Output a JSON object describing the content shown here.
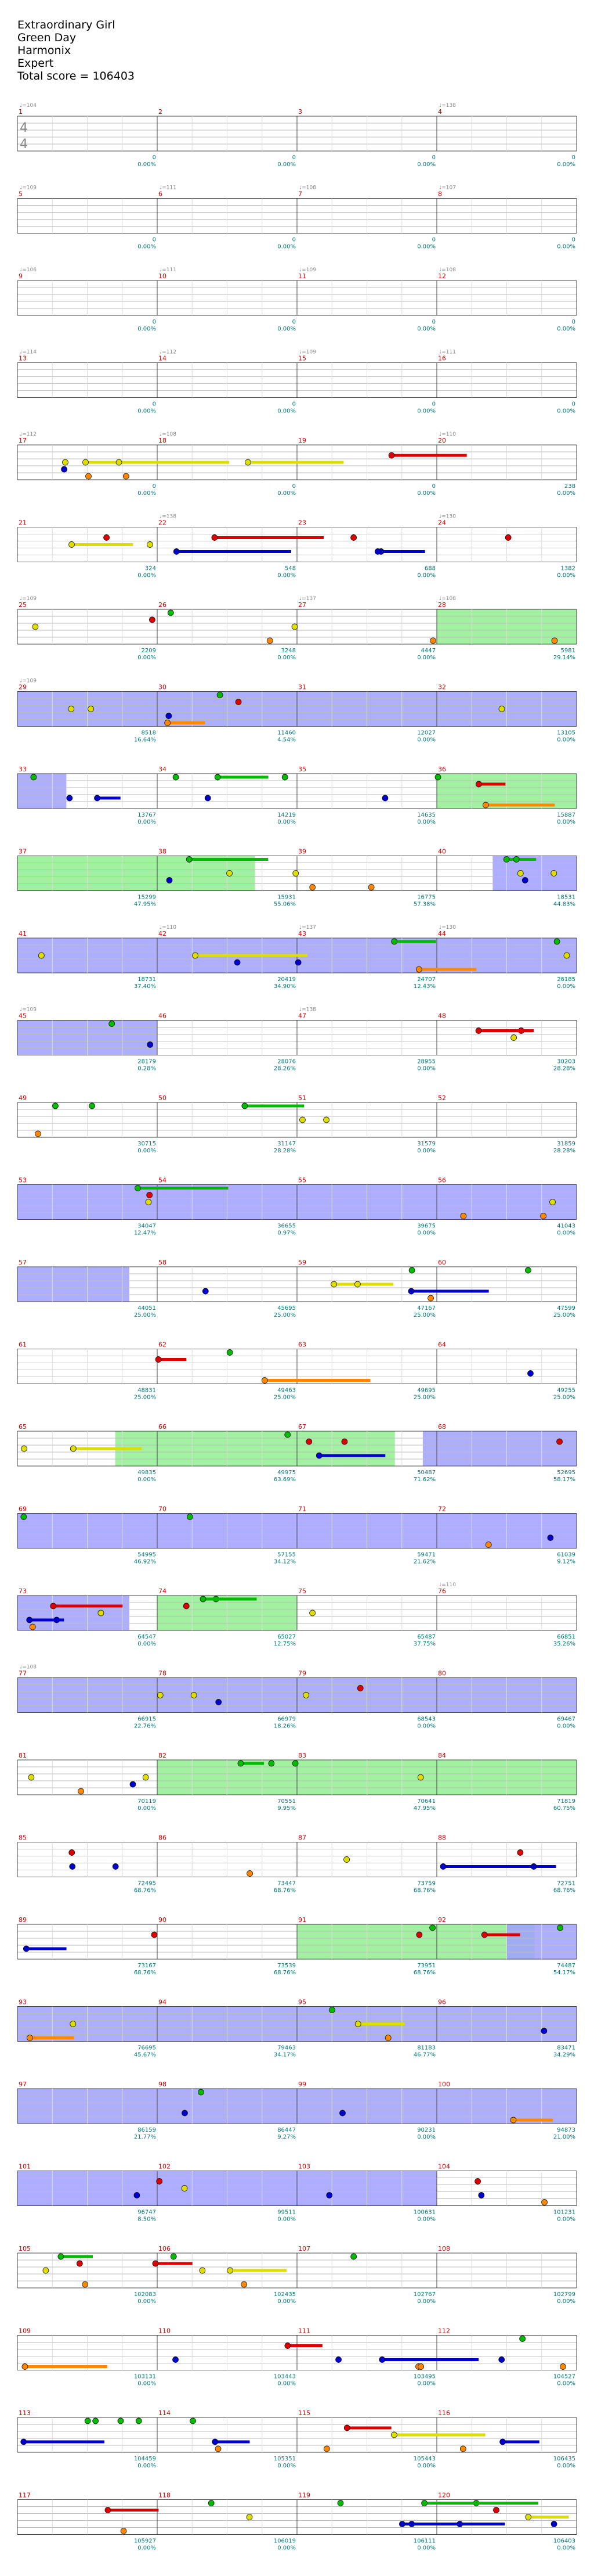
{
  "song": {
    "title": "Extraordinary Girl",
    "artist": "Green Day",
    "charter": "Harmonix",
    "difficulty": "Expert",
    "total_score_label": "Total score = ",
    "total_score": "106403"
  },
  "time_signature": [
    "4",
    "4"
  ],
  "colors": {
    "green": "#00bb00",
    "red": "#dd0000",
    "yellow": "#dddd00",
    "blue": "#0000cc",
    "orange": "#ff8800",
    "starpower_fill": "#90ee90",
    "overdrive_fill": "#a0a0ff",
    "text_score": "#007777",
    "text_tempo": "#888888",
    "text_measure": "#cc0000"
  },
  "rows": [
    {
      "measures": [
        1,
        2,
        3,
        4
      ],
      "scores": [
        "0",
        "0",
        "0",
        "0"
      ],
      "percents": [
        "0.00%",
        "0.00%",
        "0.00%",
        "0.00%"
      ],
      "tempos": [
        "104",
        "",
        "",
        "138"
      ]
    },
    {
      "measures": [
        5,
        6,
        7,
        8
      ],
      "scores": [
        "0",
        "0",
        "0",
        "0"
      ],
      "percents": [
        "0.00%",
        "0.00%",
        "0.00%",
        "0.00%"
      ],
      "tempos": [
        "109",
        "111",
        "108",
        "107"
      ]
    },
    {
      "measures": [
        9,
        10,
        11,
        12
      ],
      "scores": [
        "0",
        "0",
        "0",
        "0"
      ],
      "percents": [
        "0.00%",
        "0.00%",
        "0.00%",
        "0.00%"
      ],
      "tempos": [
        "106",
        "111",
        "109",
        "108"
      ]
    },
    {
      "measures": [
        13,
        14,
        15,
        16
      ],
      "scores": [
        "0",
        "0",
        "0",
        "0"
      ],
      "percents": [
        "0.00%",
        "0.00%",
        "0.00%",
        "0.00%"
      ],
      "tempos": [
        "114",
        "112",
        "109",
        "111"
      ]
    },
    {
      "measures": [
        17,
        18,
        19,
        20
      ],
      "scores": [
        "0",
        "0",
        "0",
        "238"
      ],
      "percents": [
        "0.00%",
        "0.00%",
        "0.00%",
        "0.00%"
      ],
      "tempos": [
        "112",
        "108",
        "",
        "110"
      ]
    },
    {
      "measures": [
        21,
        22,
        23,
        24
      ],
      "scores": [
        "324",
        "548",
        "688",
        "1382"
      ],
      "percents": [
        "0.00%",
        "0.00%",
        "0.00%",
        "0.00%"
      ],
      "tempos": [
        "",
        "138",
        "",
        "130"
      ]
    },
    {
      "measures": [
        25,
        26,
        27,
        28
      ],
      "scores": [
        "2209",
        "3248",
        "4447",
        "5981"
      ],
      "percents": [
        "0.00%",
        "0.00%",
        "0.00%",
        "29.14%"
      ],
      "tempos": [
        "109",
        "",
        "137",
        "108"
      ]
    },
    {
      "measures": [
        29,
        30,
        31,
        32
      ],
      "scores": [
        "8518",
        "11460",
        "12027",
        "13105"
      ],
      "percents": [
        "16.64%",
        "4.54%",
        "0.00%",
        "0.00%"
      ],
      "tempos": [
        "109",
        "",
        "",
        ""
      ]
    },
    {
      "measures": [
        33,
        34,
        35,
        36
      ],
      "scores": [
        "13767",
        "14219",
        "14635",
        "15887"
      ],
      "percents": [
        "0.00%",
        "0.00%",
        "0.00%",
        "0.00%"
      ],
      "tempos": [
        "",
        "",
        "",
        ""
      ]
    },
    {
      "measures": [
        37,
        38,
        39,
        40
      ],
      "scores": [
        "15299",
        "15931",
        "16775",
        "18531"
      ],
      "percents": [
        "47.95%",
        "55.06%",
        "57.38%",
        "44.83%"
      ],
      "tempos": [
        "",
        "",
        "",
        ""
      ]
    },
    {
      "measures": [
        41,
        42,
        43,
        44
      ],
      "scores": [
        "18731",
        "20419",
        "24707",
        "26185"
      ],
      "percents": [
        "37.40%",
        "34.90%",
        "12.43%",
        "0.00%"
      ],
      "tempos": [
        "",
        "110",
        "137",
        "130"
      ]
    },
    {
      "measures": [
        45,
        46,
        47,
        48
      ],
      "scores": [
        "28179",
        "28076",
        "28955",
        "30203"
      ],
      "percents": [
        "0.28%",
        "28.26%",
        "0.00%",
        "28.28%"
      ],
      "tempos": [
        "109",
        "",
        "138",
        ""
      ]
    },
    {
      "measures": [
        49,
        50,
        51,
        52
      ],
      "scores": [
        "30715",
        "31147",
        "31579",
        "31859"
      ],
      "percents": [
        "0.00%",
        "28.28%",
        "0.00%",
        "28.28%"
      ],
      "tempos": [
        "",
        "",
        "",
        ""
      ]
    },
    {
      "measures": [
        53,
        54,
        55,
        56
      ],
      "scores": [
        "34047",
        "36655",
        "39675",
        "41043"
      ],
      "percents": [
        "12.47%",
        "0.97%",
        "0.00%",
        "0.00%"
      ],
      "tempos": [
        "",
        "",
        "",
        ""
      ]
    },
    {
      "measures": [
        57,
        58,
        59,
        60
      ],
      "scores": [
        "44051",
        "45695",
        "47167",
        "47599"
      ],
      "percents": [
        "25.00%",
        "25.00%",
        "25.00%",
        "25.00%"
      ],
      "tempos": [
        "",
        "",
        "",
        ""
      ]
    },
    {
      "measures": [
        61,
        62,
        63,
        64
      ],
      "scores": [
        "48831",
        "49463",
        "49695",
        "49255"
      ],
      "percents": [
        "25.00%",
        "25.00%",
        "25.00%",
        "25.00%"
      ],
      "tempos": [
        "",
        "",
        "",
        ""
      ]
    },
    {
      "measures": [
        65,
        66,
        67,
        68
      ],
      "scores": [
        "49835",
        "49975",
        "50487",
        "52695"
      ],
      "percents": [
        "0.00%",
        "63.69%",
        "71.62%",
        "58.17%"
      ],
      "tempos": [
        "",
        "",
        "",
        ""
      ]
    },
    {
      "measures": [
        69,
        70,
        71,
        72
      ],
      "scores": [
        "54995",
        "57155",
        "59471",
        "61039"
      ],
      "percents": [
        "46.92%",
        "34.12%",
        "21.62%",
        "9.12%"
      ],
      "tempos": [
        "",
        "",
        "",
        ""
      ]
    },
    {
      "measures": [
        73,
        74,
        75,
        76
      ],
      "scores": [
        "64547",
        "65027",
        "65487",
        "66851"
      ],
      "percents": [
        "0.00%",
        "12.75%",
        "37.75%",
        "35.26%"
      ],
      "tempos": [
        "",
        "",
        "",
        "110"
      ]
    },
    {
      "measures": [
        77,
        78,
        79,
        80
      ],
      "scores": [
        "66915",
        "66979",
        "68543",
        "69467"
      ],
      "percents": [
        "22.76%",
        "18.26%",
        "0.00%",
        "0.00%"
      ],
      "tempos": [
        "108",
        "",
        "",
        ""
      ]
    },
    {
      "measures": [
        81,
        82,
        83,
        84
      ],
      "scores": [
        "70119",
        "70551",
        "70641",
        "71819"
      ],
      "percents": [
        "0.00%",
        "9.95%",
        "47.95%",
        "60.75%"
      ],
      "tempos": [
        "",
        "",
        "",
        ""
      ]
    },
    {
      "measures": [
        85,
        86,
        87,
        88
      ],
      "scores": [
        "72495",
        "73447",
        "73759",
        "72751"
      ],
      "percents": [
        "68.76%",
        "68.76%",
        "68.76%",
        "68.76%"
      ],
      "tempos": [
        "",
        "",
        "",
        ""
      ]
    },
    {
      "measures": [
        89,
        90,
        91,
        92
      ],
      "scores": [
        "73167",
        "73539",
        "73951",
        "74487"
      ],
      "percents": [
        "68.76%",
        "68.76%",
        "68.76%",
        "54.17%"
      ],
      "tempos": [
        "",
        "",
        "",
        ""
      ]
    },
    {
      "measures": [
        93,
        94,
        95,
        96
      ],
      "scores": [
        "76695",
        "79463",
        "81183",
        "83471"
      ],
      "percents": [
        "45.67%",
        "34.17%",
        "46.77%",
        "34.29%"
      ],
      "tempos": [
        "",
        "",
        "",
        ""
      ]
    },
    {
      "measures": [
        97,
        98,
        99,
        100
      ],
      "scores": [
        "86159",
        "86447",
        "90231",
        "94873"
      ],
      "percents": [
        "21.77%",
        "9.27%",
        "0.00%",
        "21.00%"
      ],
      "tempos": [
        "",
        "",
        "",
        ""
      ]
    },
    {
      "measures": [
        101,
        102,
        103,
        104
      ],
      "scores": [
        "96747",
        "99511",
        "100631",
        "101231"
      ],
      "percents": [
        "8.50%",
        "0.00%",
        "0.00%",
        "0.00%"
      ],
      "tempos": [
        "",
        "",
        "",
        ""
      ]
    },
    {
      "measures": [
        105,
        106,
        107,
        108
      ],
      "scores": [
        "102083",
        "102435",
        "102767",
        "102799"
      ],
      "percents": [
        "0.00%",
        "0.00%",
        "0.00%",
        "0.00%"
      ],
      "tempos": [
        "",
        "",
        "",
        ""
      ]
    },
    {
      "measures": [
        109,
        110,
        111,
        112
      ],
      "scores": [
        "103131",
        "103443",
        "103495",
        "104527"
      ],
      "percents": [
        "0.00%",
        "0.00%",
        "0.00%",
        "0.00%"
      ],
      "tempos": [
        "",
        "",
        "",
        ""
      ]
    },
    {
      "measures": [
        113,
        114,
        115,
        116
      ],
      "scores": [
        "104459",
        "105351",
        "105443",
        "106435"
      ],
      "percents": [
        "0.00%",
        "0.00%",
        "0.00%",
        "0.00%"
      ],
      "tempos": [
        "",
        "",
        "",
        ""
      ]
    },
    {
      "measures": [
        117,
        118,
        119,
        120
      ],
      "scores": [
        "105927",
        "106019",
        "106111",
        "106403"
      ],
      "percents": [
        "0.00%",
        "0.00%",
        "0.00%",
        "0.00%"
      ],
      "tempos": [
        "",
        "",
        "",
        ""
      ]
    }
  ]
}
